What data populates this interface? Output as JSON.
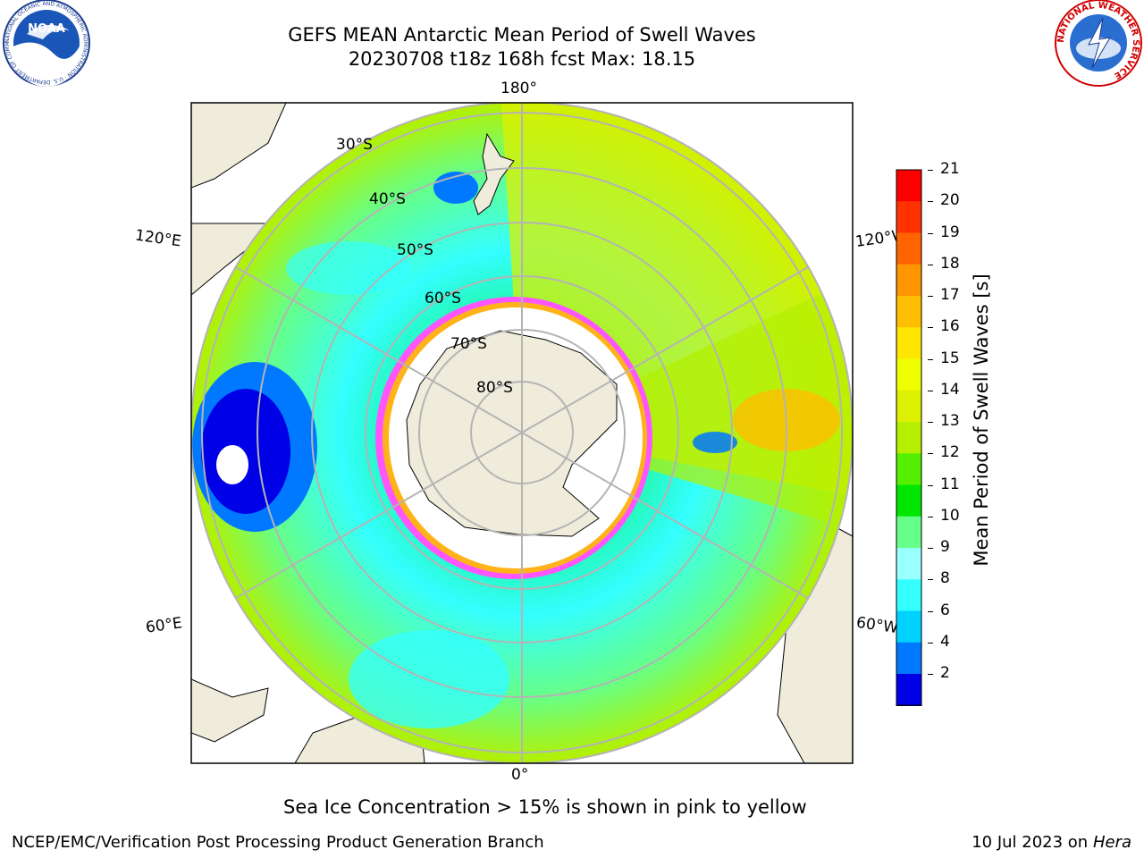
{
  "header": {
    "title_line1": "GEFS MEAN Antarctic Mean Period of Swell Waves",
    "title_line2": "20230708 t18z 168h fcst   Max: 18.15"
  },
  "logos": {
    "left": {
      "text": "NOAA",
      "ring_text": "NATIONAL OCEANIC AND ATMOSPHERIC ADMINISTRATION · U.S. DEPARTMENT OF COMMERCE"
    },
    "right": {
      "ring_text": "NATIONAL WEATHER SERVICE"
    }
  },
  "map": {
    "longitude_labels": {
      "top": "180°",
      "bottom": "0°",
      "upper_left": "120°E",
      "lower_left": "60°E",
      "upper_right": "120°W",
      "lower_right": "60°W"
    },
    "latitude_labels": [
      "30°S",
      "40°S",
      "50°S",
      "60°S",
      "70°S",
      "80°S"
    ]
  },
  "colorbar": {
    "label": "Mean Period of Swell Waves [s]",
    "ticks": [
      "2",
      "4",
      "6",
      "8",
      "9",
      "10",
      "11",
      "12",
      "13",
      "14",
      "15",
      "16",
      "17",
      "18",
      "19",
      "20",
      "21"
    ],
    "colors": [
      "#0000e6",
      "#0078ff",
      "#00d2ff",
      "#33ffff",
      "#99ffff",
      "#66ff88",
      "#00e600",
      "#55f000",
      "#b4f000",
      "#dcf000",
      "#f0ff00",
      "#ffe600",
      "#ffbe00",
      "#ff9600",
      "#ff6400",
      "#ff3200",
      "#ff0000"
    ]
  },
  "note": "Sea Ice Concentration > 15% is shown in pink to yellow",
  "footer": {
    "left": "NCEP/EMC/Verification Post Processing Product Generation Branch",
    "right_date": "10 Jul 2023 on ",
    "right_host": "Hera"
  }
}
